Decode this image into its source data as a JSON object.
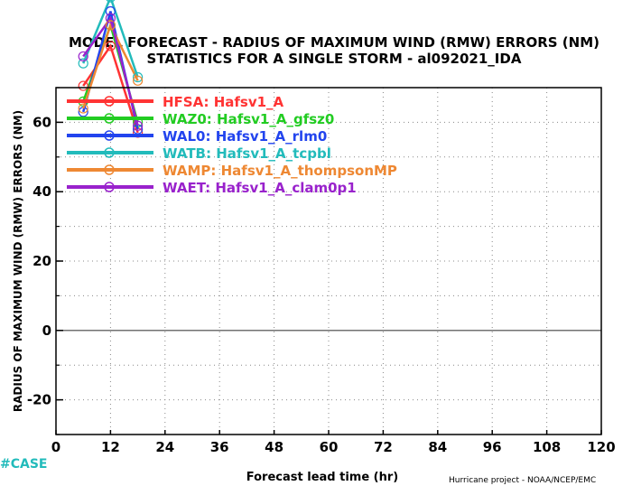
{
  "chart_data": {
    "type": "line",
    "title": "MODEL FORECAST - RADIUS OF MAXIMUM WIND (RMW) ERRORS (NM)",
    "subtitle": "STATISTICS FOR A SINGLE STORM - al092021_IDA",
    "xlabel": "Forecast lead time (hr)",
    "ylabel": "RADIUS OF MAXIMUM WIND (RMW) ERRORS (NM)",
    "xlim": [
      0,
      120
    ],
    "ylim": [
      -30,
      70
    ],
    "xticks": [
      "0",
      "12",
      "24",
      "36",
      "48",
      "60",
      "72",
      "84",
      "96",
      "108",
      "120"
    ],
    "yticks": [
      "-20",
      "0",
      "20",
      "40",
      "60"
    ],
    "grid": true,
    "legend_position": "top-left",
    "credit": "Hurricane project - NOAA/NCEP/EMC",
    "case_label": "#CASE",
    "series": [
      {
        "name": "HFSA: Hafsv1_A",
        "color": "#ff3333",
        "x": [
          6,
          12,
          18
        ],
        "y": [
          70.5,
          82,
          57
        ]
      },
      {
        "name": "WAZ0: Hafsv1_A_gfsz0",
        "color": "#22cc22",
        "x": [
          6,
          12,
          18
        ],
        "y": [
          66,
          88,
          60
        ]
      },
      {
        "name": "WAL0: Hafsv1_A_rlm0",
        "color": "#2244ee",
        "x": [
          6,
          12,
          18
        ],
        "y": [
          63,
          92,
          58
        ]
      },
      {
        "name": "WATB: Hafsv1_A_tcpbl",
        "color": "#22bbbb",
        "x": [
          6,
          12,
          18
        ],
        "y": [
          77,
          96,
          73
        ]
      },
      {
        "name": "WAMP: Hafsv1_A_thompsonMP",
        "color": "#ee8833",
        "x": [
          6,
          12,
          18
        ],
        "y": [
          64,
          88,
          72
        ]
      },
      {
        "name": "WAET: Hafsv1_A_clam0p1",
        "color": "#9922cc",
        "x": [
          6,
          12,
          18
        ],
        "y": [
          79,
          90,
          59
        ]
      }
    ]
  }
}
